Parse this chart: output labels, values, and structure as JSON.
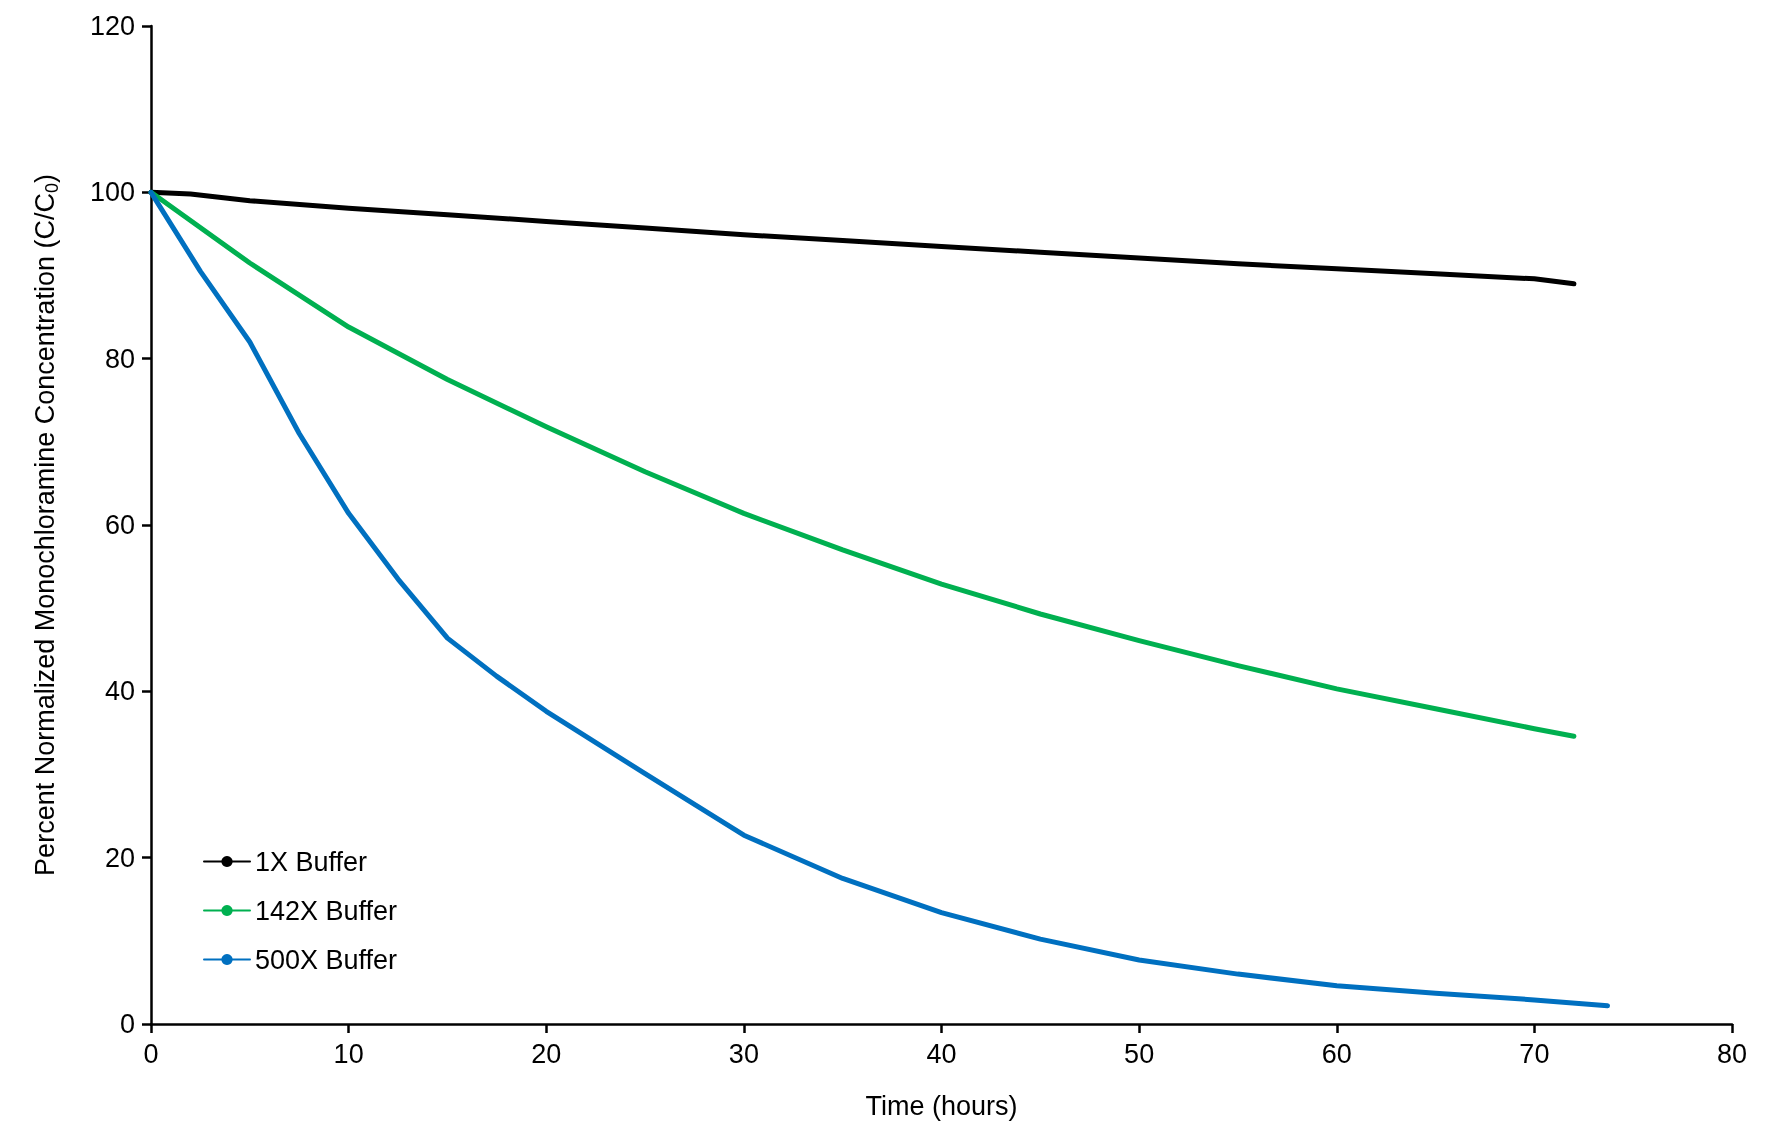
{
  "chart_data": {
    "type": "line",
    "xlabel": "Time (hours)",
    "ylabel": "Percent Normalized Monochloramine Concentration (C/C$_{0}$)",
    "xlim": [
      0,
      80
    ],
    "xticks": [
      0,
      10,
      20,
      30,
      40,
      50,
      60,
      70,
      80
    ],
    "ylim": [
      0,
      120
    ],
    "yticks": [
      0,
      20,
      40,
      60,
      80,
      100,
      120
    ],
    "grid": false,
    "legend": "bottom left",
    "marker": "none",
    "line_style": "solid",
    "series": [
      {
        "name": "1X Buffer",
        "color": "#000000",
        "x": [
          0,
          2,
          5,
          10,
          15,
          20,
          25,
          30,
          35,
          40,
          45,
          50,
          55,
          60,
          65,
          70,
          72
        ],
        "values": [
          100,
          99.8,
          99.0,
          98.1,
          97.3,
          96.5,
          95.7,
          94.9,
          94.2,
          93.5,
          92.8,
          92.1,
          91.4,
          90.8,
          90.2,
          89.6,
          89.0
        ]
      },
      {
        "name": "142X Buffer",
        "color": "#00b050",
        "x": [
          0,
          5,
          10,
          15,
          20,
          25,
          30,
          35,
          40,
          45,
          50,
          55,
          60,
          65,
          70,
          72
        ],
        "values": [
          100,
          91.5,
          83.8,
          77.5,
          71.8,
          66.4,
          61.4,
          57.0,
          52.9,
          49.3,
          46.1,
          43.1,
          40.3,
          37.9,
          35.5,
          34.6
        ]
      },
      {
        "name": "500X Buffer",
        "color": "#0070c0",
        "x": [
          0,
          2.5,
          5,
          7.5,
          10,
          12.5,
          15,
          17.5,
          20,
          25,
          30,
          35,
          40,
          45,
          50,
          55,
          60,
          65,
          70,
          73.7
        ],
        "values": [
          100,
          90.5,
          82,
          71,
          61.4,
          53.5,
          46.4,
          41.8,
          37.6,
          30.1,
          22.7,
          17.5,
          13.4,
          10.2,
          7.7,
          6.0,
          4.6,
          3.7,
          2.9,
          2.2
        ]
      }
    ]
  }
}
